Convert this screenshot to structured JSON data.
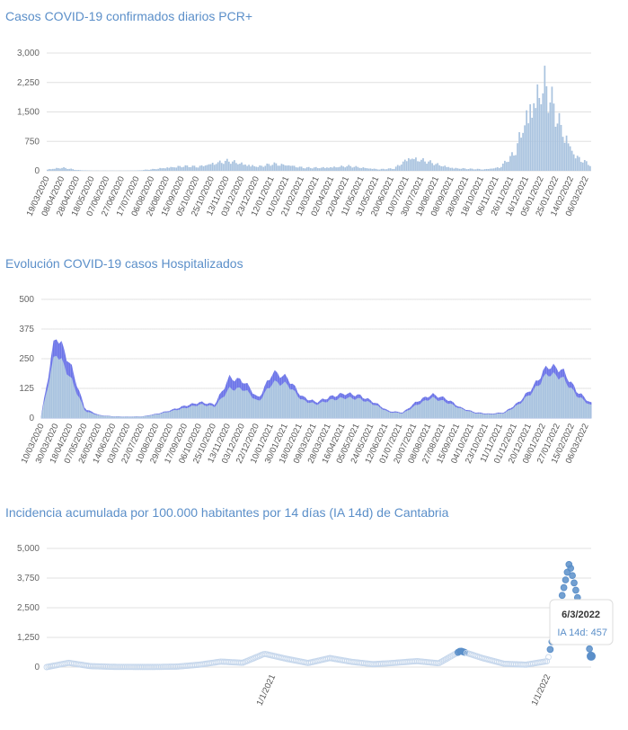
{
  "chart_data": [
    {
      "type": "bar",
      "title": "Casos COVID-19 confirmados diarios PCR+",
      "xlabel": "",
      "ylabel": "",
      "ylim": [
        0,
        3000
      ],
      "yticks": [
        "3,000",
        "2,250",
        "1,500",
        "750",
        "0"
      ],
      "ytick_values": [
        3000,
        2250,
        1500,
        750,
        0
      ],
      "color": "#a9c3df",
      "categories": [
        "19/03/2020",
        "08/04/2020",
        "28/04/2020",
        "18/05/2020",
        "07/06/2020",
        "27/06/2020",
        "17/07/2020",
        "06/08/2020",
        "26/08/2020",
        "15/09/2020",
        "05/10/2020",
        "25/10/2020",
        "13/11/2020",
        "03/12/2020",
        "23/12/2020",
        "12/01/2021",
        "01/02/2021",
        "21/02/2021",
        "13/03/2021",
        "02/04/2021",
        "22/04/2021",
        "11/05/2021",
        "31/05/2021",
        "20/06/2021",
        "10/07/2021",
        "30/07/2021",
        "19/08/2021",
        "08/09/2021",
        "28/09/2021",
        "18/10/2021",
        "06/11/2021",
        "26/11/2021",
        "16/12/2021",
        "05/01/2022",
        "25/01/2022",
        "14/02/2022",
        "06/03/2022"
      ],
      "values": [
        40,
        80,
        20,
        5,
        5,
        5,
        10,
        40,
        90,
        120,
        110,
        200,
        250,
        180,
        110,
        180,
        150,
        80,
        80,
        100,
        120,
        80,
        40,
        60,
        350,
        260,
        150,
        70,
        50,
        40,
        90,
        450,
        1700,
        2200,
        1200,
        400,
        150
      ]
    },
    {
      "type": "area",
      "title": "Evolución COVID-19 casos  Hospitalizados",
      "xlabel": "",
      "ylabel": "",
      "ylim": [
        0,
        500
      ],
      "yticks": [
        "500",
        "375",
        "250",
        "125",
        "0"
      ],
      "ytick_values": [
        500,
        375,
        250,
        125,
        0
      ],
      "categories": [
        "10/03/2020",
        "30/03/2020",
        "18/04/2020",
        "07/05/2020",
        "26/05/2020",
        "14/06/2020",
        "03/07/2020",
        "22/07/2020",
        "10/08/2020",
        "29/08/2020",
        "17/09/2020",
        "06/10/2020",
        "25/10/2020",
        "13/11/2020",
        "03/12/2020",
        "22/12/2020",
        "10/01/2021",
        "30/01/2021",
        "18/02/2021",
        "09/03/2021",
        "28/03/2021",
        "16/04/2021",
        "05/05/2021",
        "24/05/2021",
        "12/06/2021",
        "01/07/2021",
        "20/07/2021",
        "08/08/2021",
        "27/08/2021",
        "15/09/2021",
        "04/10/2021",
        "23/10/2021",
        "11/11/2021",
        "01/12/2021",
        "20/12/2021",
        "08/01/2022",
        "27/01/2022",
        "15/02/2022",
        "06/03/2022"
      ],
      "series": [
        {
          "color": "#a9c3df",
          "values": [
            5,
            300,
            180,
            30,
            10,
            5,
            4,
            5,
            15,
            30,
            45,
            60,
            50,
            130,
            130,
            70,
            160,
            150,
            80,
            60,
            80,
            90,
            85,
            60,
            25,
            20,
            60,
            90,
            70,
            40,
            20,
            15,
            20,
            60,
            120,
            200,
            180,
            100,
            55
          ]
        },
        {
          "color": "#6b74e8",
          "values": [
            6,
            380,
            240,
            40,
            12,
            6,
            5,
            6,
            18,
            35,
            55,
            70,
            60,
            180,
            165,
            85,
            205,
            180,
            95,
            70,
            95,
            110,
            100,
            70,
            30,
            24,
            75,
            105,
            85,
            45,
            24,
            18,
            24,
            70,
            140,
            235,
            215,
            120,
            65
          ]
        }
      ]
    },
    {
      "type": "scatter",
      "title": "Incidencia acumulada por 100.000 habitantes por 14 días (IA 14d) de Cantabria",
      "xlabel": "",
      "ylabel": "",
      "ylim": [
        0,
        5000
      ],
      "yticks": [
        "5,000",
        "3,750",
        "2,500",
        "1,250",
        "0"
      ],
      "ytick_values": [
        5000,
        3750,
        2500,
        1250,
        0
      ],
      "xticks": [
        "1/1/2021",
        "1/1/2022"
      ],
      "color": "#5b8fc9",
      "x": [
        0,
        4,
        8,
        12,
        16,
        20,
        24,
        28,
        32,
        36,
        40,
        44,
        48,
        52,
        56,
        60,
        64,
        68,
        72,
        76,
        80,
        84,
        88,
        92,
        96,
        100
      ],
      "y": [
        0,
        180,
        40,
        10,
        5,
        5,
        20,
        100,
        230,
        180,
        560,
        350,
        170,
        380,
        220,
        120,
        180,
        250,
        160,
        680,
        380,
        140,
        100,
        250,
        4400,
        457
      ],
      "tooltip": {
        "date": "6/3/2022",
        "label": "IA 14d: 457"
      }
    }
  ]
}
